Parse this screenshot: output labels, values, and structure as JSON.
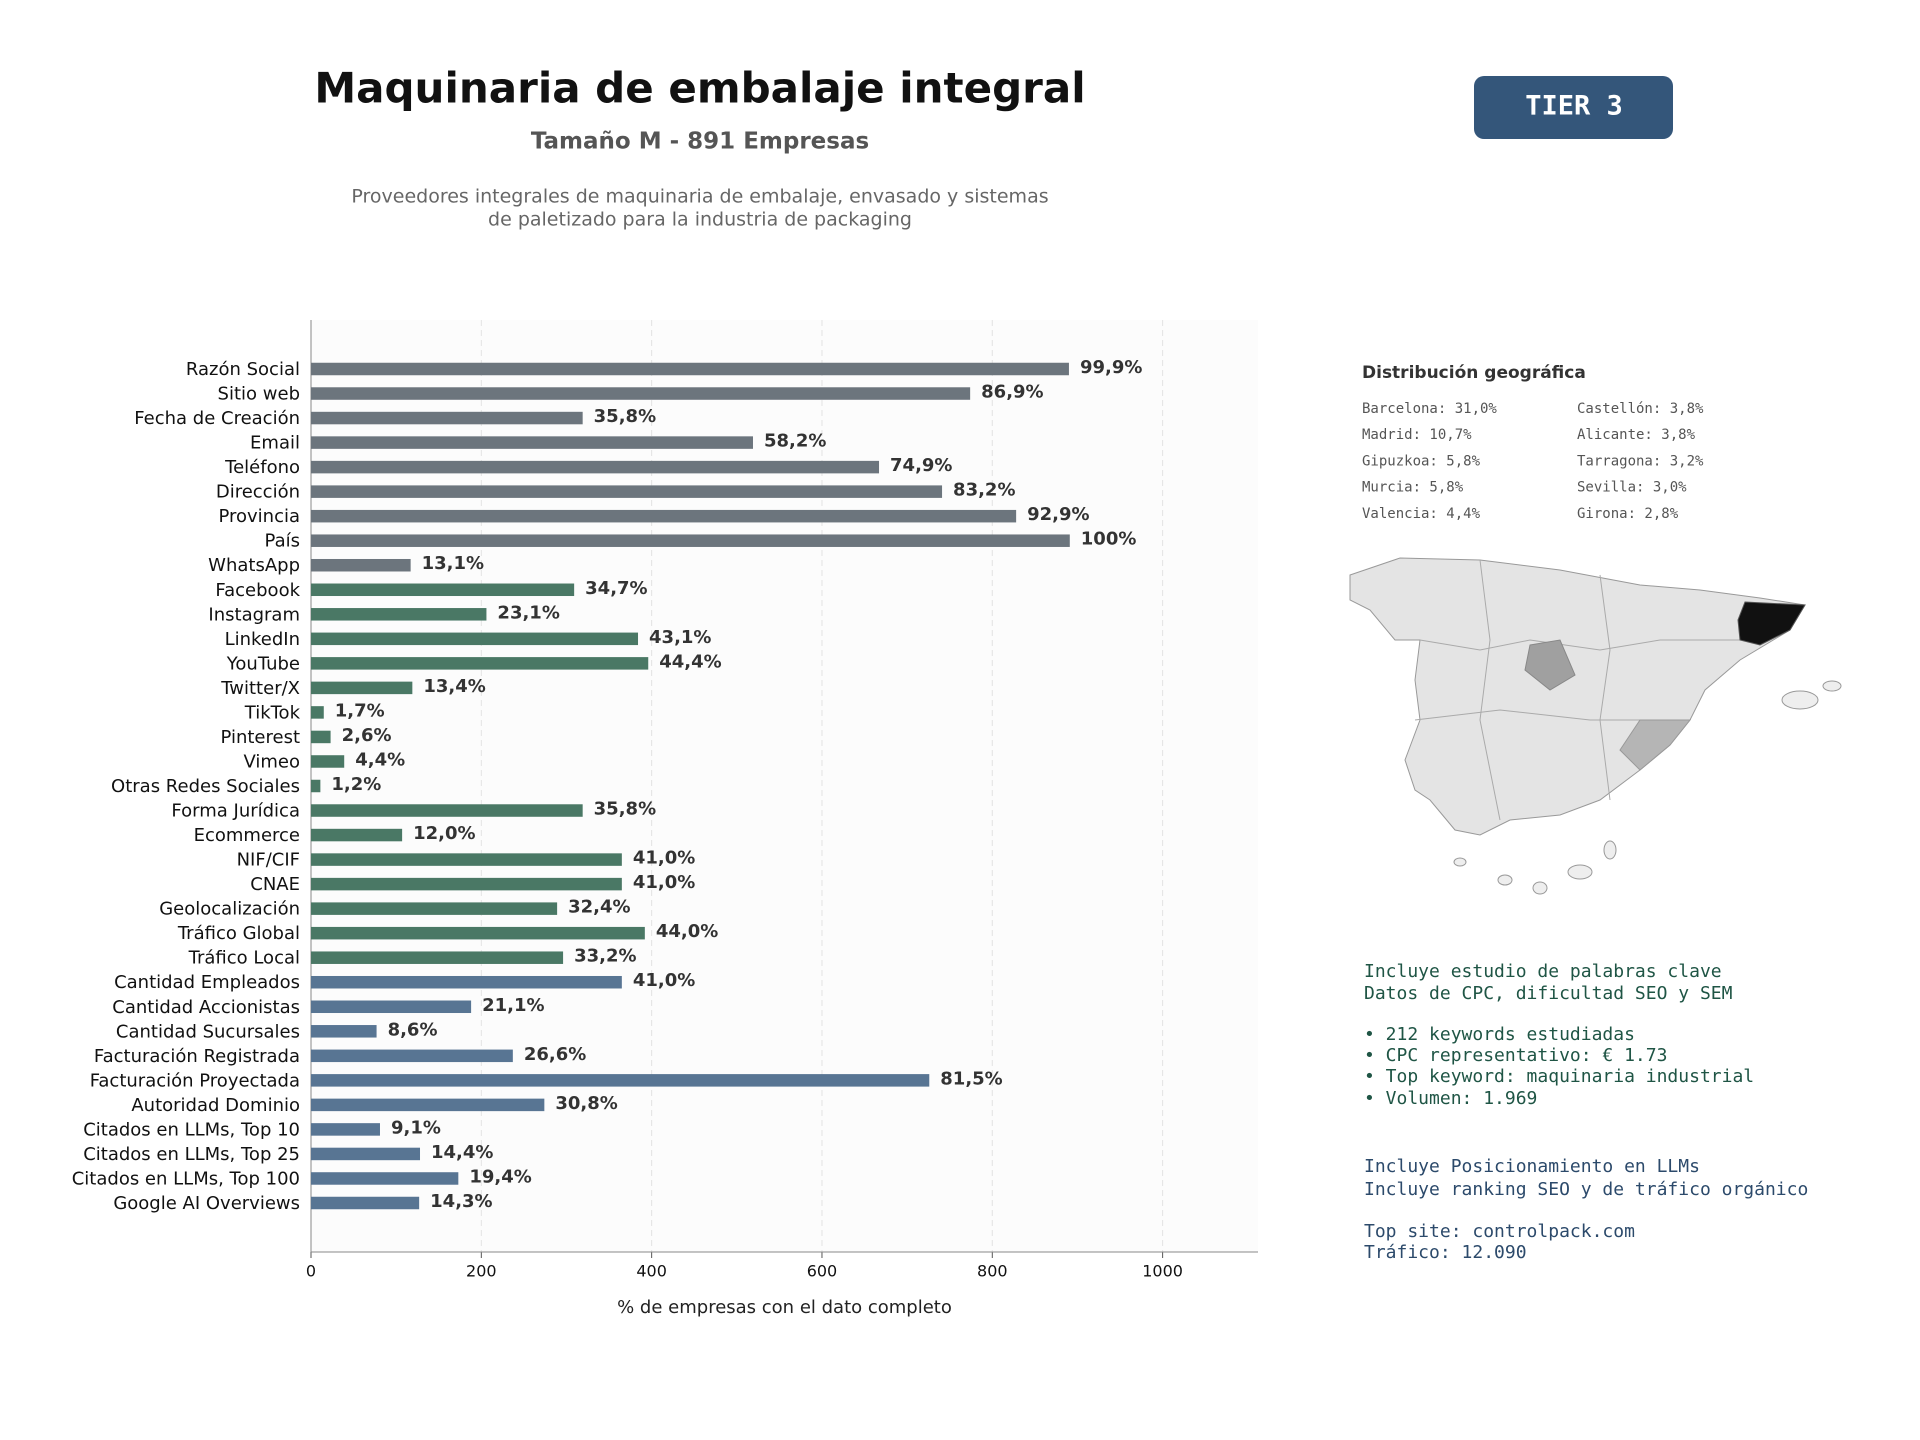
{
  "chart_data": {
    "type": "barh",
    "title": "Maquinaria de embalaje integral",
    "subtitle": "Tamaño M - 891 Empresas",
    "description": [
      "Proveedores integrales de maquinaria de embalaje, envasado y sistemas",
      "de paletizado para la industria de packaging"
    ],
    "badge": "TIER 3",
    "xlabel": "% de empresas con el dato completo",
    "categories": [
      "Razón Social",
      "Sitio web",
      "Fecha de Creación",
      "Email",
      "Teléfono",
      "Dirección",
      "Provincia",
      "País",
      "WhatsApp",
      "Facebook",
      "Instagram",
      "LinkedIn",
      "YouTube",
      "Twitter/X",
      "TikTok",
      "Pinterest",
      "Vimeo",
      "Otras Redes Sociales",
      "Forma Jurídica",
      "Ecommerce",
      "NIF/CIF",
      "CNAE",
      "Geolocalización",
      "Tráfico Global",
      "Tráfico Local",
      "Cantidad Empleados",
      "Cantidad Accionistas",
      "Cantidad Sucursales",
      "Facturación Registrada",
      "Facturación Proyectada",
      "Autoridad Dominio",
      "Citados en LLMs, Top 10",
      "Citados en LLMs, Top 25",
      "Citados en LLMs, Top 100",
      "Google AI Overviews"
    ],
    "values": [
      890,
      774,
      319,
      519,
      667,
      741,
      828,
      891,
      117,
      309,
      206,
      384,
      396,
      119,
      15,
      23,
      39,
      11,
      319,
      107,
      365,
      365,
      289,
      392,
      296,
      365,
      188,
      77,
      237,
      726,
      274,
      81,
      128,
      173,
      127
    ],
    "value_labels": [
      "99,9%",
      "86,9%",
      "35,8%",
      "58,2%",
      "74,9%",
      "83,2%",
      "92,9%",
      "100%",
      "13,1%",
      "34,7%",
      "23,1%",
      "43,1%",
      "44,4%",
      "13,4%",
      "1,7%",
      "2,6%",
      "4,4%",
      "1,2%",
      "35,8%",
      "12,0%",
      "41,0%",
      "41,0%",
      "32,4%",
      "44,0%",
      "33,2%",
      "41,0%",
      "21,1%",
      "8,6%",
      "26,6%",
      "81,5%",
      "30,8%",
      "9,1%",
      "14,4%",
      "19,4%",
      "14,3%"
    ],
    "colors": [
      "#6c757d",
      "#6c757d",
      "#6c757d",
      "#6c757d",
      "#6c757d",
      "#6c757d",
      "#6c757d",
      "#6c757d",
      "#6c757d",
      "#4a7865",
      "#4a7865",
      "#4a7865",
      "#4a7865",
      "#4a7865",
      "#4a7865",
      "#4a7865",
      "#4a7865",
      "#4a7865",
      "#4a7865",
      "#4a7865",
      "#4a7865",
      "#4a7865",
      "#4a7865",
      "#4a7865",
      "#4a7865",
      "#587593",
      "#587593",
      "#587593",
      "#587593",
      "#587593",
      "#587593",
      "#587593",
      "#587593",
      "#587593",
      "#587593"
    ],
    "xlim": [
      0,
      1112
    ],
    "xticks": [
      0,
      200,
      400,
      600,
      800,
      1000
    ],
    "grid": true
  },
  "geo": {
    "title": "Distribución geográfica",
    "items": [
      "Barcelona: 31,0%",
      "Madrid: 10,7%",
      "Gipuzkoa: 5,8%",
      "Murcia: 5,8%",
      "Valencia: 4,4%",
      "Castellón: 3,8%",
      "Alicante: 3,8%",
      "Tarragona: 3,2%",
      "Sevilla: 3,0%",
      "Girona: 2,8%"
    ]
  },
  "info": {
    "keywords": [
      "Incluye estudio de palabras clave",
      "Datos de CPC, dificultad SEO y SEM",
      "• 212 keywords estudiadas",
      "• CPC representativo: € 1.73",
      "• Top keyword: maquinaria industrial",
      "• Volumen: 1.969"
    ],
    "llm": [
      "Incluye Posicionamiento en LLMs",
      "Incluye ranking SEO y de tráfico orgánico",
      "Top site: controlpack.com",
      "Tráfico: 12.090"
    ]
  }
}
